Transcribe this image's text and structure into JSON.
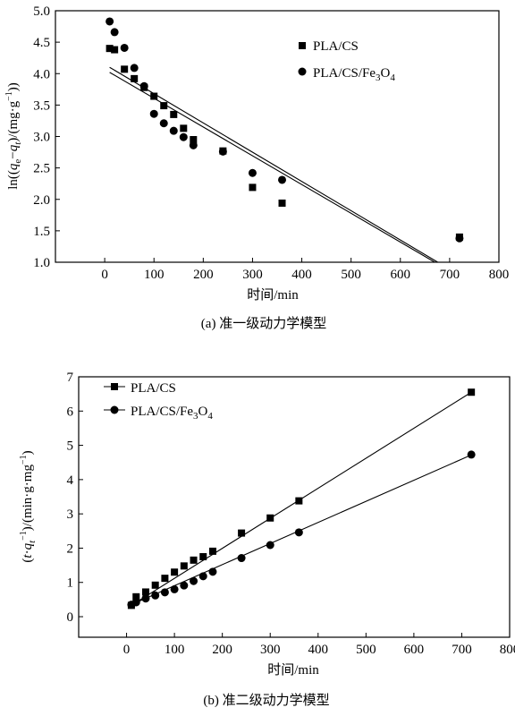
{
  "chart_data": [
    {
      "type": "scatter",
      "caption": "(a) 准一级动力学模型",
      "xlabel": "时间/min",
      "ylabel": "ln((qe−qt)/(mg·g−1))",
      "ylabel_parts": {
        "a": "ln((",
        "q1": "q",
        "s1": "e",
        "b": "−",
        "q2": "q",
        "s2": "t",
        "c": ")/(mg·g",
        "sup": "−1",
        "d": "))"
      },
      "xlim": [
        -100,
        800
      ],
      "ylim": [
        1.0,
        5.0
      ],
      "xticks": [
        "0",
        "100",
        "200",
        "300",
        "400",
        "500",
        "600",
        "700",
        "800"
      ],
      "yticks": [
        "1.0",
        "1.5",
        "2.0",
        "2.5",
        "3.0",
        "3.5",
        "4.0",
        "4.5",
        "5.0"
      ],
      "legend_position": "top-right",
      "series": [
        {
          "name": "PLA/CS",
          "marker": "square",
          "x": [
            10,
            20,
            40,
            60,
            80,
            100,
            120,
            140,
            160,
            180,
            240,
            300,
            360,
            720
          ],
          "y": [
            4.4,
            4.38,
            4.07,
            3.92,
            3.78,
            3.64,
            3.49,
            3.35,
            3.13,
            2.95,
            2.77,
            2.19,
            1.94,
            1.4
          ],
          "fit": [
            [
              10,
              4.02
            ],
            [
              670,
              1.0
            ]
          ]
        },
        {
          "name": "PLA/CS/Fe3O4",
          "legend_parts": {
            "a": "PLA/CS/Fe",
            "s1": "3",
            "b": "O",
            "s2": "4"
          },
          "marker": "circle",
          "x": [
            10,
            20,
            40,
            60,
            80,
            100,
            120,
            140,
            160,
            180,
            240,
            300,
            360,
            720
          ],
          "y": [
            4.83,
            4.66,
            4.41,
            4.09,
            3.8,
            3.36,
            3.21,
            3.09,
            2.99,
            2.86,
            2.76,
            2.42,
            2.31,
            1.38
          ],
          "fit": [
            [
              10,
              4.1
            ],
            [
              676,
              1.0
            ]
          ]
        }
      ]
    },
    {
      "type": "scatter",
      "caption": "(b) 准二级动力学模型",
      "xlabel": "时间/min",
      "ylabel": "(t·qt−1)/(min·g·mg−1)",
      "ylabel_parts": {
        "a": "(",
        "t": "t",
        "dot": "·",
        "q": "q",
        "s1": "t",
        "sup1": "−1",
        "b": ")/(min·g·mg",
        "sup2": "−1",
        "c": ")"
      },
      "xlim": [
        -100,
        800
      ],
      "ylim": [
        -0.6,
        7.0
      ],
      "xticks": [
        "0",
        "100",
        "200",
        "300",
        "400",
        "500",
        "600",
        "700",
        "800"
      ],
      "yticks": [
        "0",
        "1",
        "2",
        "3",
        "4",
        "5",
        "6",
        "7"
      ],
      "legend_position": "top-left",
      "series": [
        {
          "name": "PLA/CS",
          "marker": "square",
          "x": [
            10,
            20,
            40,
            60,
            80,
            100,
            120,
            140,
            160,
            180,
            240,
            300,
            360,
            720
          ],
          "y": [
            0.33,
            0.58,
            0.72,
            0.92,
            1.12,
            1.3,
            1.48,
            1.65,
            1.75,
            1.91,
            2.44,
            2.88,
            3.38,
            6.55
          ],
          "fit": [
            [
              10,
              0.33
            ],
            [
              720,
              6.55
            ]
          ]
        },
        {
          "name": "PLA/CS/Fe3O4",
          "legend_parts": {
            "a": "PLA/CS/Fe",
            "s1": "3",
            "b": "O",
            "s2": "4"
          },
          "marker": "circle",
          "x": [
            10,
            20,
            40,
            60,
            80,
            100,
            120,
            140,
            160,
            180,
            240,
            300,
            360,
            720
          ],
          "y": [
            0.35,
            0.42,
            0.53,
            0.62,
            0.71,
            0.8,
            0.91,
            1.04,
            1.18,
            1.31,
            1.71,
            2.09,
            2.46,
            4.73
          ],
          "fit": [
            [
              10,
              0.35
            ],
            [
              720,
              4.72
            ]
          ]
        }
      ]
    }
  ]
}
